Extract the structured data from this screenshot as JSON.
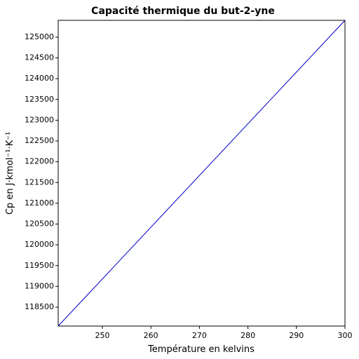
{
  "chart_data": {
    "type": "line",
    "title": "Capacité thermique du but-2-yne",
    "x_label": "Température en kelvins",
    "y_label": "Cp en J·kmol⁻¹·K⁻¹",
    "x": [
      240.9,
      300
    ],
    "series": [
      {
        "color": "#0000cc",
        "values": [
          118044,
          125405
        ]
      }
    ],
    "xlim": [
      240.9,
      300
    ],
    "xticks": [
      250,
      260,
      270,
      280,
      290,
      300
    ],
    "ylim": [
      118044,
      125405
    ],
    "yticks": [
      118500,
      119000,
      119500,
      120000,
      120500,
      121000,
      121500,
      122000,
      122500,
      123000,
      123500,
      124000,
      124500,
      125000
    ]
  }
}
